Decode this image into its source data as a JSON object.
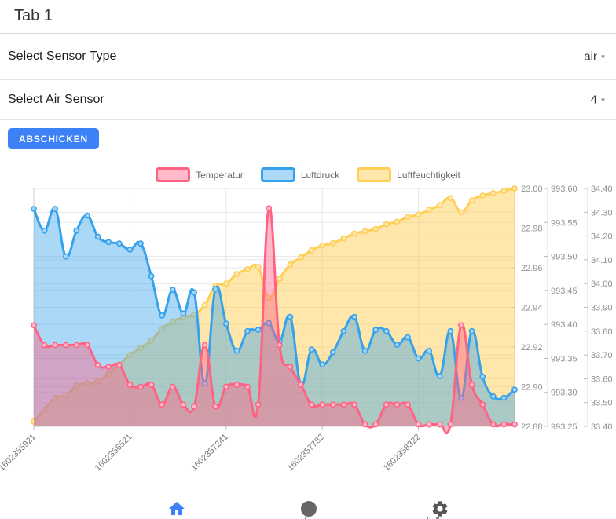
{
  "header": {
    "title": "Tab 1"
  },
  "form": {
    "rows": [
      {
        "label": "Select Sensor Type",
        "value": "air"
      },
      {
        "label": "Select Air Sensor",
        "value": "4"
      }
    ],
    "submit_label": "ABSCHICKEN"
  },
  "colors": {
    "accent_blue": "#3c82f6",
    "temperature": "#ff6384",
    "pressure": "#36a2eb",
    "humidity": "#ffce56",
    "axis_text": "#8f8f8f",
    "grid": "#e7e7e7",
    "legend_text": "#666666"
  },
  "chart_data": {
    "type": "line",
    "title": "",
    "legend_position": "top",
    "grid": true,
    "total_points": 46,
    "x_labels": [
      "1602355921",
      "1602356521",
      "1602357241",
      "1602357782",
      "1602358322"
    ],
    "label_indices": [
      0,
      9,
      18,
      27,
      36
    ],
    "axes": {
      "temp": {
        "min": 22.88,
        "max": 23.0,
        "ticks": [
          "23.00",
          "22.98",
          "22.96",
          "22.94",
          "22.92",
          "22.90",
          "22.88"
        ]
      },
      "pressure": {
        "min": 993.25,
        "max": 993.6,
        "ticks": [
          "993.60",
          "993.55",
          "993.50",
          "993.45",
          "993.40",
          "993.35",
          "993.30",
          "993.25"
        ]
      },
      "humidity": {
        "min": 33.4,
        "max": 34.4,
        "ticks": [
          "34.40",
          "34.30",
          "34.20",
          "34.10",
          "34.00",
          "33.90",
          "33.80",
          "33.70",
          "33.60",
          "33.50",
          "33.40"
        ]
      }
    },
    "series": [
      {
        "name": "Temperatur",
        "axis": "temp",
        "color": "#ff6384",
        "fill": "rgba(255,99,132,0.45)",
        "values": [
          22.931,
          22.921,
          22.921,
          22.921,
          22.921,
          22.921,
          22.911,
          22.91,
          22.911,
          22.901,
          22.9,
          22.901,
          22.891,
          22.9,
          22.891,
          22.89,
          22.921,
          22.89,
          22.9,
          22.901,
          22.9,
          22.891,
          22.99,
          22.921,
          22.91,
          22.901,
          22.891,
          22.891,
          22.891,
          22.891,
          22.891,
          22.881,
          22.881,
          22.891,
          22.891,
          22.891,
          22.881,
          22.881,
          22.881,
          22.881,
          22.931,
          22.901,
          22.891,
          22.881,
          22.881,
          22.881
        ]
      },
      {
        "name": "Luftdruck",
        "axis": "pressure",
        "color": "#36a2eb",
        "fill": "rgba(54,162,235,0.42)",
        "values": [
          993.57,
          993.538,
          993.57,
          993.5,
          993.538,
          993.56,
          993.529,
          993.521,
          993.519,
          993.51,
          993.519,
          993.471,
          993.413,
          993.451,
          993.416,
          993.447,
          993.313,
          993.452,
          993.401,
          993.361,
          993.39,
          993.392,
          993.402,
          993.375,
          993.411,
          993.312,
          993.363,
          993.341,
          993.359,
          993.39,
          993.411,
          993.361,
          993.392,
          993.39,
          993.37,
          993.381,
          993.35,
          993.361,
          993.324,
          993.39,
          993.292,
          993.39,
          993.323,
          993.294,
          993.292,
          993.304
        ]
      },
      {
        "name": "Luftfeuchtigkeit",
        "axis": "humidity",
        "color": "#ffce56",
        "fill": "rgba(255,206,86,0.5)",
        "values": [
          33.42,
          33.47,
          33.52,
          33.53,
          33.57,
          33.58,
          33.59,
          33.62,
          33.66,
          33.7,
          33.73,
          33.76,
          33.81,
          33.84,
          33.86,
          33.87,
          33.91,
          33.99,
          34.0,
          34.04,
          34.06,
          34.07,
          33.94,
          34.02,
          34.08,
          34.11,
          34.14,
          34.16,
          34.17,
          34.19,
          34.21,
          34.22,
          34.23,
          34.25,
          34.26,
          34.28,
          34.29,
          34.31,
          34.33,
          34.36,
          34.3,
          34.35,
          34.37,
          34.38,
          34.39,
          34.4
        ]
      }
    ]
  },
  "tabbar": {
    "items": [
      {
        "icon": "home",
        "active": true
      },
      {
        "icon": "circle",
        "active": false
      },
      {
        "icon": "gear",
        "active": false
      }
    ]
  }
}
